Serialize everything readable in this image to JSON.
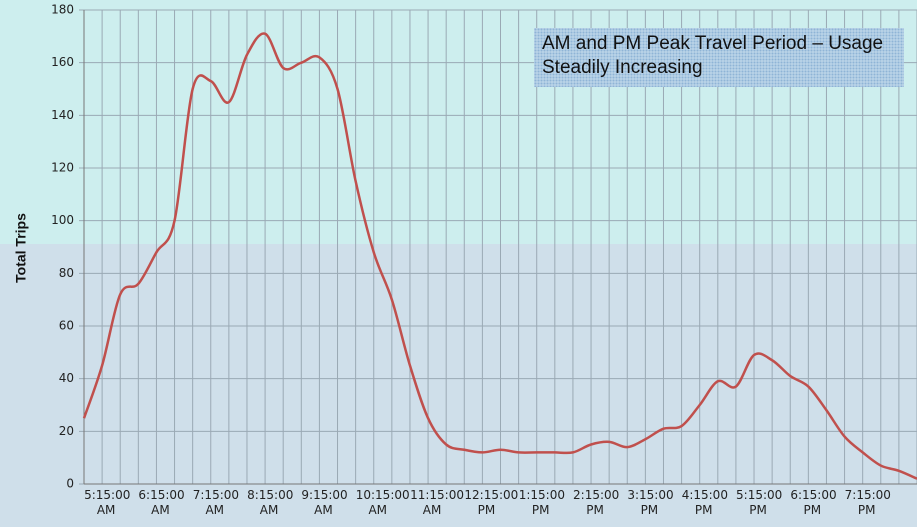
{
  "chart_data": {
    "type": "line",
    "title": "AM and PM Peak Travel Period – Usage Steadily Increasing",
    "y_label": "Total Trips",
    "categories": [
      null,
      "5:15:00 AM",
      null,
      null,
      "6:15:00 AM",
      null,
      null,
      "7:15:00 AM",
      null,
      null,
      "8:15:00 AM",
      null,
      null,
      "9:15:00 AM",
      null,
      null,
      "10:15:00 AM",
      null,
      null,
      "11:15:00 AM",
      null,
      null,
      "12:15:00 PM",
      null,
      null,
      "1:15:00 PM",
      null,
      null,
      "2:15:00 PM",
      null,
      null,
      "3:15:00 PM",
      null,
      null,
      "4:15:00 PM",
      null,
      null,
      "5:15:00 PM",
      null,
      null,
      "6:15:00 PM",
      null,
      null,
      "7:15:00 PM",
      null,
      null,
      null
    ],
    "series": [
      {
        "name": "Total Trips",
        "color": "#c0504d",
        "values": [
          25,
          45,
          72,
          76,
          88,
          100,
          150,
          153,
          145,
          163,
          171,
          158,
          160,
          162,
          150,
          115,
          88,
          70,
          45,
          25,
          15,
          13,
          12,
          13,
          12,
          12,
          12,
          12,
          15,
          16,
          14,
          17,
          21,
          22,
          30,
          39,
          37,
          49,
          47,
          41,
          37,
          28,
          18,
          12,
          7,
          5,
          2
        ]
      }
    ],
    "ylim": [
      0,
      180
    ],
    "yticks": [
      0,
      20,
      40,
      60,
      80,
      100,
      120,
      140,
      160,
      180
    ],
    "grid": true
  }
}
